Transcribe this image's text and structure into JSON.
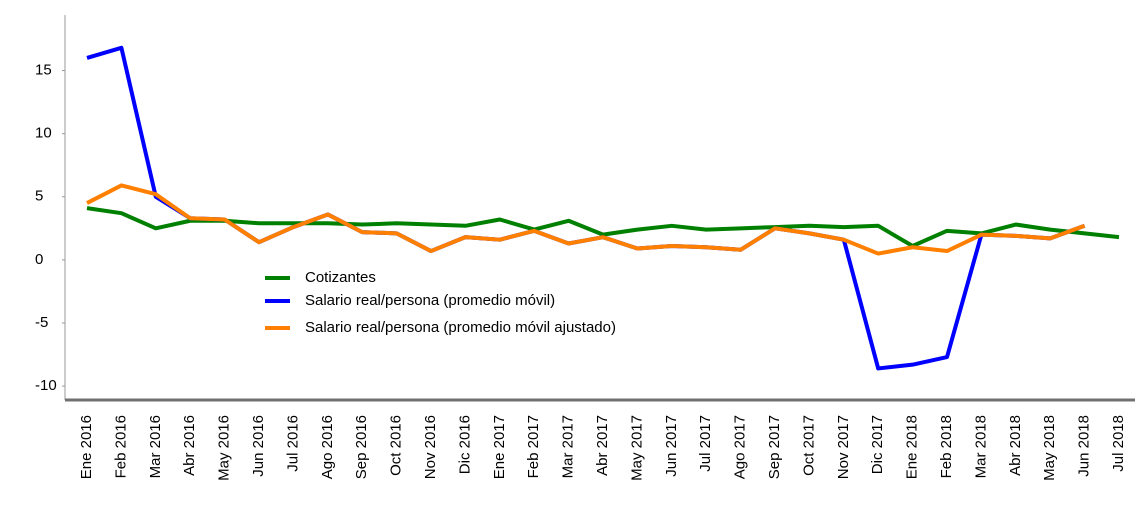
{
  "chart_data": {
    "type": "line",
    "categories": [
      "Ene 2016",
      "Feb 2016",
      "Mar 2016",
      "Abr 2016",
      "May 2016",
      "Jun 2016",
      "Jul 2016",
      "Ago 2016",
      "Sep 2016",
      "Oct 2016",
      "Nov 2016",
      "Dic 2016",
      "Ene 2017",
      "Feb 2017",
      "Mar 2017",
      "Abr 2017",
      "May 2017",
      "Jun 2017",
      "Jul 2017",
      "Ago 2017",
      "Sep 2017",
      "Oct 2017",
      "Nov 2017",
      "Dic 2017",
      "Ene 2018",
      "Feb 2018",
      "Mar 2018",
      "Abr 2018",
      "May 2018",
      "Jun 2018",
      "Jul 2018"
    ],
    "series": [
      {
        "name": "Cotizantes",
        "color": "#008000",
        "values": [
          4.1,
          3.7,
          2.5,
          3.1,
          3.1,
          2.9,
          2.9,
          2.9,
          2.8,
          2.9,
          2.8,
          2.7,
          3.2,
          2.4,
          3.1,
          2.0,
          2.4,
          2.7,
          2.4,
          2.5,
          2.6,
          2.7,
          2.6,
          2.7,
          1.1,
          2.3,
          2.1,
          2.8,
          2.4,
          2.1,
          1.8
        ]
      },
      {
        "name": "Salario real/persona (promedio móvil)",
        "color": "#0000ff",
        "values": [
          16.0,
          16.8,
          5.0,
          3.3,
          3.2,
          1.4,
          2.6,
          3.6,
          2.2,
          2.1,
          0.7,
          1.8,
          1.6,
          2.3,
          1.3,
          1.8,
          0.9,
          1.1,
          1.0,
          0.8,
          2.5,
          2.1,
          1.6,
          -8.6,
          -8.3,
          -7.7,
          2.0,
          1.9,
          1.7,
          2.7,
          null
        ]
      },
      {
        "name": "Salario real/persona (promedio móvil ajustado)",
        "color": "#ff8000",
        "values": [
          4.5,
          5.9,
          5.2,
          3.3,
          3.2,
          1.4,
          2.6,
          3.6,
          2.2,
          2.1,
          0.7,
          1.8,
          1.6,
          2.3,
          1.3,
          1.8,
          0.9,
          1.1,
          1.0,
          0.8,
          2.5,
          2.1,
          1.6,
          0.5,
          1.0,
          0.7,
          2.0,
          1.9,
          1.7,
          2.7,
          null
        ]
      }
    ],
    "ylim": [
      -11.1,
      19.4
    ],
    "yticks": [
      15,
      10,
      5,
      0,
      -5,
      -10
    ],
    "grid": false
  }
}
